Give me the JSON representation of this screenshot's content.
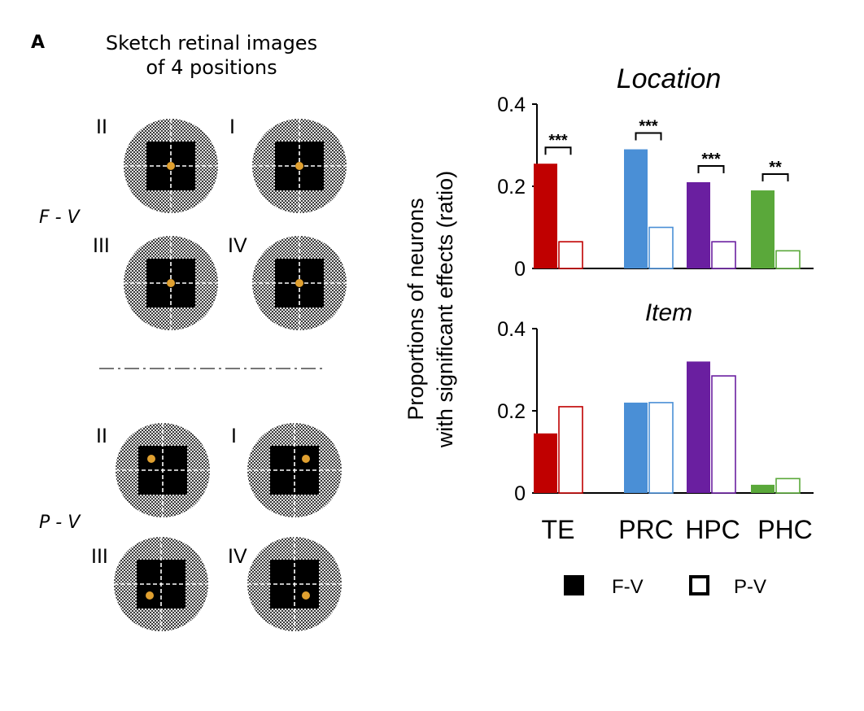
{
  "panel_label": "A",
  "sketch": {
    "title_line1": "Sketch retinal images",
    "title_line2": "of 4 positions",
    "groups": [
      {
        "condition": "F - V",
        "positions": [
          {
            "label": "II",
            "dot": "center"
          },
          {
            "label": "I",
            "dot": "center"
          },
          {
            "label": "III",
            "dot": "center"
          },
          {
            "label": "IV",
            "dot": "center"
          }
        ]
      },
      {
        "condition": "P - V",
        "positions": [
          {
            "label": "II",
            "dot": "top-left"
          },
          {
            "label": "I",
            "dot": "top-right"
          },
          {
            "label": "III",
            "dot": "bottom-left"
          },
          {
            "label": "IV",
            "dot": "bottom-right"
          }
        ]
      }
    ]
  },
  "colors": {
    "TE": "#c00000",
    "PRC": "#4a8fd6",
    "HPC": "#6a1fa0",
    "PHC": "#5aa83a",
    "fixation_dot": "#e0a030",
    "divider": "#777777"
  },
  "legend": {
    "filled_label": "F-V",
    "open_label": "P-V"
  },
  "chart_data": [
    {
      "type": "bar",
      "title": "Location",
      "ylabel": "Proportions of neurons with significant effects (ratio)",
      "categories": [
        "TE",
        "PRC",
        "HPC",
        "PHC"
      ],
      "series": [
        {
          "name": "F-V",
          "style": "filled",
          "values": [
            0.255,
            0.29,
            0.21,
            0.19
          ]
        },
        {
          "name": "P-V",
          "style": "open",
          "values": [
            0.065,
            0.1,
            0.065,
            0.043
          ]
        }
      ],
      "ylim": [
        0,
        0.4
      ],
      "yticks": [
        "0",
        "0.2",
        "0.4"
      ],
      "annotations": [
        "***",
        "***",
        "***",
        "**"
      ]
    },
    {
      "type": "bar",
      "title": "Item",
      "ylabel": "Proportions of neurons with significant effects (ratio)",
      "categories": [
        "TE",
        "PRC",
        "HPC",
        "PHC"
      ],
      "series": [
        {
          "name": "F-V",
          "style": "filled",
          "values": [
            0.145,
            0.22,
            0.32,
            0.02
          ]
        },
        {
          "name": "P-V",
          "style": "open",
          "values": [
            0.21,
            0.22,
            0.285,
            0.035
          ]
        }
      ],
      "ylim": [
        0,
        0.4
      ],
      "yticks": [
        "0",
        "0.2",
        "0.4"
      ],
      "annotations": []
    }
  ]
}
